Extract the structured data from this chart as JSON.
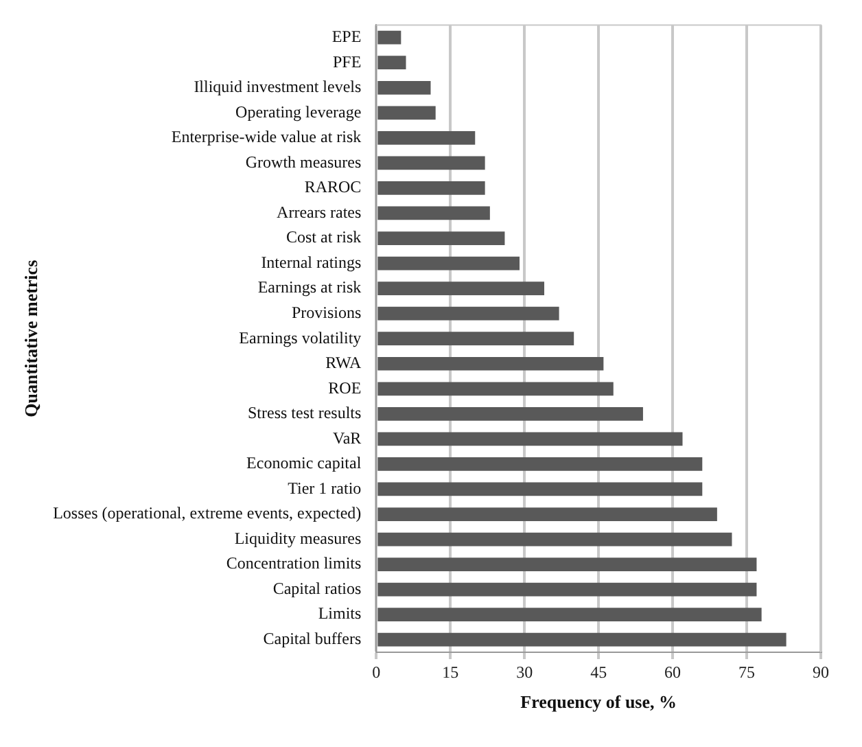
{
  "chart_data": {
    "type": "bar",
    "orientation": "horizontal",
    "xlabel": "Frequency of use, %",
    "ylabel": "Quantitative metrics",
    "categories": [
      "EPE",
      "PFE",
      "Illiquid investment levels",
      "Operating leverage",
      "Enterprise-wide value at risk",
      "Growth measures",
      "RAROC",
      "Arrears rates",
      "Cost at risk",
      "Internal ratings",
      "Earnings at risk",
      "Provisions",
      "Earnings volatility",
      "RWA",
      "ROE",
      "Stress test results",
      "VaR",
      "Economic capital",
      "Tier 1 ratio",
      "Losses (operational, extreme events, expected)",
      "Liquidity measures",
      "Concentration limits",
      "Capital ratios",
      "Limits",
      "Capital buffers"
    ],
    "values": [
      5,
      6,
      11,
      12,
      20,
      22,
      22,
      23,
      26,
      29,
      34,
      37,
      40,
      46,
      48,
      54,
      62,
      66,
      66,
      69,
      72,
      77,
      77,
      78,
      83
    ],
    "color": "#595959",
    "xlim": [
      0,
      90
    ],
    "xticks": [
      0,
      15,
      30,
      45,
      60,
      75,
      90
    ],
    "grid": "x",
    "legend": false
  }
}
